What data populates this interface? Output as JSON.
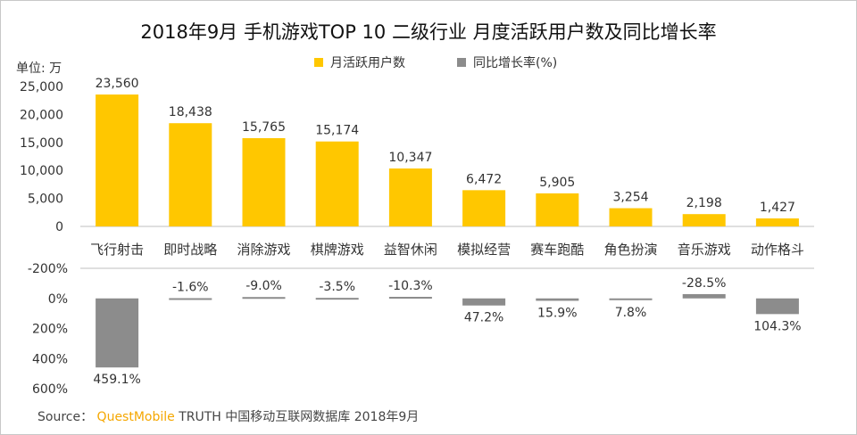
{
  "title": "2018年9月 手机游戏TOP 10 二级行业 月度活跃用户数及同比增长率",
  "unit_label": "单位: 万",
  "legend": [
    {
      "label": "月活跃用户数",
      "color": "#FFC700"
    },
    {
      "label": "同比增长率(%)",
      "color": "#8C8C8C"
    }
  ],
  "source": {
    "prefix": "Source：",
    "brand": "QuestMobile",
    "rest": "TRUTH 中国移动互联网数据库 2018年9月"
  },
  "chart_data": {
    "type": "bar",
    "categories": [
      "飞行射击",
      "即时战略",
      "消除游戏",
      "棋牌游戏",
      "益智休闲",
      "模拟经营",
      "赛车跑酷",
      "角色扮演",
      "音乐游戏",
      "动作格斗"
    ],
    "series": [
      {
        "name": "月活跃用户数",
        "color": "#FFC700",
        "values": [
          23560,
          18438,
          15765,
          15174,
          10347,
          6472,
          5905,
          3254,
          2198,
          1427
        ],
        "labels": [
          "23,560",
          "18,438",
          "15,765",
          "15,174",
          "10,347",
          "6,472",
          "5,905",
          "3,254",
          "2,198",
          "1,427"
        ],
        "ylim": [
          0,
          25000
        ],
        "ticks": [
          "25,000",
          "20,000",
          "15,000",
          "10,000",
          "5,000",
          "0"
        ],
        "tick_values": [
          25000,
          20000,
          15000,
          10000,
          5000,
          0
        ]
      },
      {
        "name": "同比增长率(%)",
        "color": "#8C8C8C",
        "values": [
          459.1,
          -1.6,
          -9.0,
          -3.5,
          -10.3,
          47.2,
          15.9,
          7.8,
          -28.5,
          104.3
        ],
        "labels": [
          "459.1%",
          "-1.6%",
          "-9.0%",
          "-3.5%",
          "-10.3%",
          "47.2%",
          "15.9%",
          "7.8%",
          "-28.5%",
          "104.3%"
        ],
        "ylim": [
          -200,
          600
        ],
        "axis_reversed": true,
        "ticks": [
          "-200%",
          "0%",
          "200%",
          "400%",
          "600%"
        ],
        "tick_values": [
          -200,
          0,
          200,
          400,
          600
        ]
      }
    ]
  }
}
